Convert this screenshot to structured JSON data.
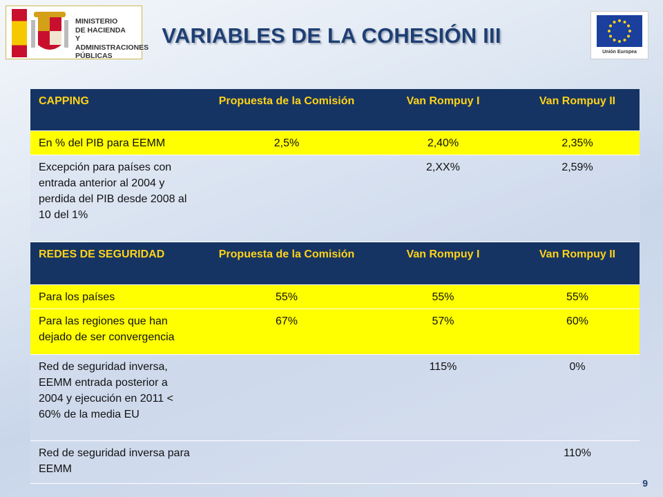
{
  "header": {
    "ministry_lines": [
      "MINISTERIO",
      "DE HACIENDA",
      "Y ADMINISTRACIONES",
      "PÚBLICAS"
    ],
    "title": "VARIABLES DE LA COHESIÓN III",
    "eu_label": "Unión Europea"
  },
  "table": {
    "section1": {
      "headers": [
        "CAPPING",
        "Propuesta de la Comisión",
        "Van Rompuy I",
        "Van Rompuy II"
      ],
      "rows": [
        {
          "label": "En % del PIB para EEMM",
          "values": [
            "2,5%",
            "2,40%",
            "2,35%"
          ]
        },
        {
          "label": "Excepción para países con entrada anterior al 2004 y perdida del PIB desde 2008 al 10 del 1%",
          "values": [
            "",
            "2,XX%",
            "2,59%"
          ]
        }
      ]
    },
    "section2": {
      "headers": [
        "REDES DE SEGURIDAD",
        "Propuesta de la Comisión",
        "Van Rompuy I",
        "Van Rompuy II"
      ],
      "rows": [
        {
          "label": "Para los países",
          "values": [
            "55%",
            "55%",
            "55%"
          ]
        },
        {
          "label": "Para las regiones que han dejado de ser convergencia",
          "values": [
            "67%",
            "57%",
            "60%"
          ]
        },
        {
          "label": "Red de seguridad inversa, EEMM entrada posterior a 2004 y ejecución en 2011 < 60% de la media EU",
          "values": [
            "",
            "115%",
            "0%"
          ]
        },
        {
          "label": "Red de seguridad inversa para EEMM",
          "values": [
            "",
            "",
            "110%"
          ]
        }
      ]
    }
  },
  "footer": {
    "page_number": "9"
  },
  "colors": {
    "header_bg": "#163463",
    "header_text": "#ffd31a",
    "highlight": "#ffff00",
    "title": "#1f3f74"
  }
}
